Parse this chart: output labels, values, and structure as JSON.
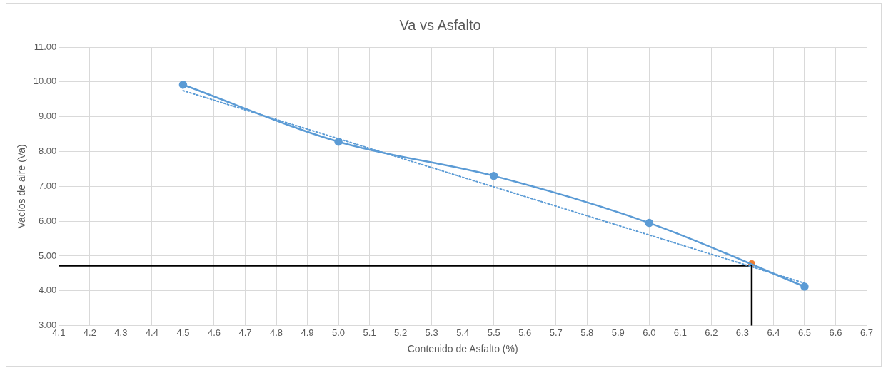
{
  "chart_data": {
    "type": "line",
    "title": "Va vs Asfalto",
    "xlabel": "Contenido de Asfalto (%)",
    "ylabel": "Vacíos de aire (Va)",
    "xlim": [
      4.1,
      6.7
    ],
    "xticks": [
      {
        "value": 4.1,
        "label": "4.1"
      },
      {
        "value": 4.2,
        "label": "4.2"
      },
      {
        "value": 4.3,
        "label": "4.3"
      },
      {
        "value": 4.4,
        "label": "4.4"
      },
      {
        "value": 4.5,
        "label": "4.5"
      },
      {
        "value": 4.6,
        "label": "4.6"
      },
      {
        "value": 4.7,
        "label": "4.7"
      },
      {
        "value": 4.8,
        "label": "4.8"
      },
      {
        "value": 4.9,
        "label": "4.9"
      },
      {
        "value": 5.0,
        "label": "5.0"
      },
      {
        "value": 5.1,
        "label": "5.1"
      },
      {
        "value": 5.2,
        "label": "5.2"
      },
      {
        "value": 5.3,
        "label": "5.3"
      },
      {
        "value": 5.4,
        "label": "5.4"
      },
      {
        "value": 5.5,
        "label": "5.5"
      },
      {
        "value": 5.6,
        "label": "5.6"
      },
      {
        "value": 5.7,
        "label": "5.7"
      },
      {
        "value": 5.8,
        "label": "5.8"
      },
      {
        "value": 5.9,
        "label": "5.9"
      },
      {
        "value": 6.0,
        "label": "6.0"
      },
      {
        "value": 6.1,
        "label": "6.1"
      },
      {
        "value": 6.2,
        "label": "6.2"
      },
      {
        "value": 6.3,
        "label": "6.3"
      },
      {
        "value": 6.4,
        "label": "6.4"
      },
      {
        "value": 6.5,
        "label": "6.5"
      },
      {
        "value": 6.6,
        "label": "6.6"
      },
      {
        "value": 6.7,
        "label": "6.7"
      }
    ],
    "ylim": [
      3,
      11
    ],
    "yticks": [
      {
        "value": 3,
        "label": "3.00"
      },
      {
        "value": 4,
        "label": "4.00"
      },
      {
        "value": 5,
        "label": "5.00"
      },
      {
        "value": 6,
        "label": "6.00"
      },
      {
        "value": 7,
        "label": "7.00"
      },
      {
        "value": 8,
        "label": "8.00"
      },
      {
        "value": 9,
        "label": "9.00"
      },
      {
        "value": 10,
        "label": "10.00"
      },
      {
        "value": 11,
        "label": "11.00"
      }
    ],
    "grid": true,
    "legend": false,
    "marker": "circle",
    "series": [
      {
        "color": "#5b9bd5",
        "x": [
          4.5,
          5.0,
          5.5,
          6.0,
          6.5
        ],
        "values": [
          9.92,
          8.28,
          7.3,
          5.95,
          4.12
        ],
        "line_style": "solid"
      },
      {
        "color": "#5b9bd5",
        "x": [
          4.5,
          6.5
        ],
        "values": [
          9.75,
          4.22
        ],
        "marker": "none",
        "line_style": "dotted"
      },
      {
        "color": "#000000",
        "x": [
          4.1,
          6.33,
          6.33
        ],
        "values": [
          4.72,
          4.72,
          3.0
        ],
        "marker": "none",
        "line_style": "solid"
      },
      {
        "type": "scatter",
        "color": "#ed7d31",
        "x": [
          6.33
        ],
        "values": [
          4.78
        ]
      }
    ]
  }
}
